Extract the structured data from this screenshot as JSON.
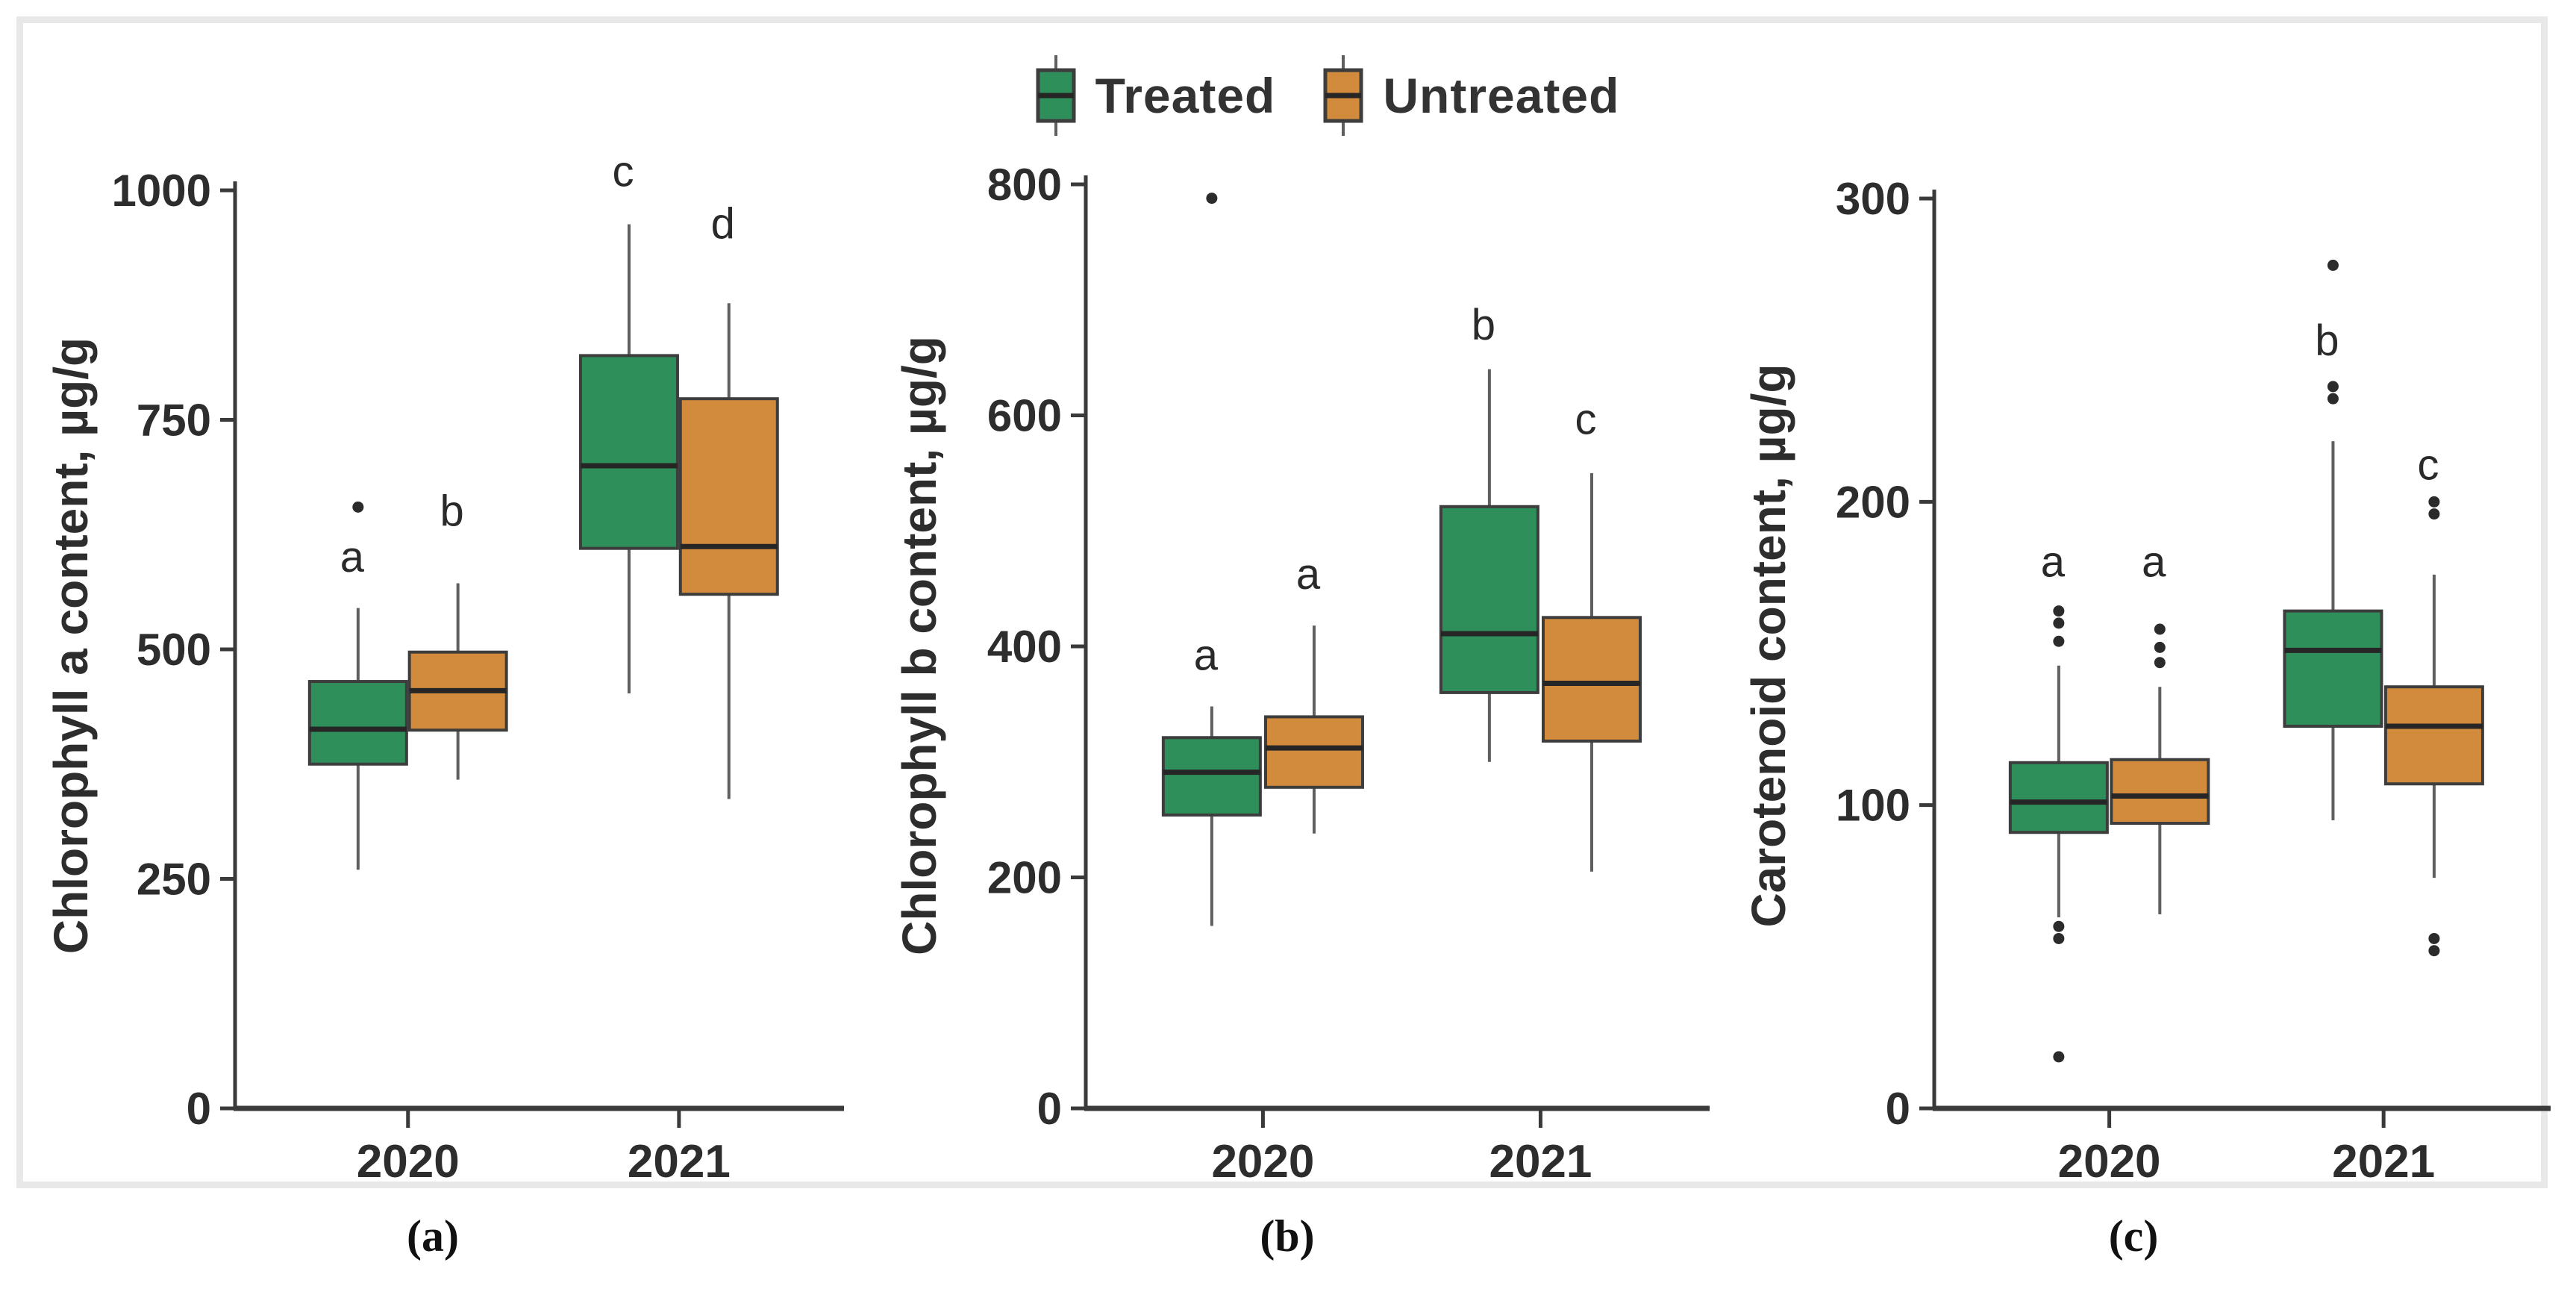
{
  "figure": {
    "background": "#ffffff",
    "frame_color": "#e8e8e8"
  },
  "legend": {
    "items": [
      {
        "label": "Treated",
        "color": "#2f8f5a"
      },
      {
        "label": "Untreated",
        "color": "#d28a3d"
      }
    ]
  },
  "captions": [
    "(a)",
    "(b)",
    "(c)"
  ],
  "colors": {
    "treated": "#2f8f5a",
    "untreated": "#d28a3d",
    "box_border": "#3d3d3d",
    "median": "#262626",
    "whisker": "#5f5f5f",
    "axis": "#3a3a3a",
    "text": "#2d2d2d",
    "outlier": "#2b2b2b"
  },
  "chart_data": [
    {
      "type": "boxplot",
      "panel": "a",
      "ylabel": "Chlorophyll a content, µg/g",
      "ylim": [
        0,
        1000
      ],
      "yticks": [
        0,
        250,
        500,
        750,
        1000
      ],
      "categories": [
        "2020",
        "2021"
      ],
      "series": [
        {
          "name": "Treated",
          "category": "2020",
          "whisker_low": 260,
          "q1": 375,
          "median": 413,
          "q3": 465,
          "whisker_high": 545,
          "outliers_high": [
            655
          ],
          "outliers_low": [],
          "letter": "a",
          "letter_y": 600
        },
        {
          "name": "Untreated",
          "category": "2020",
          "whisker_low": 358,
          "q1": 412,
          "median": 455,
          "q3": 497,
          "whisker_high": 572,
          "outliers_high": [],
          "outliers_low": [],
          "letter": "b",
          "letter_y": 650
        },
        {
          "name": "Treated",
          "category": "2021",
          "whisker_low": 452,
          "q1": 610,
          "median": 700,
          "q3": 820,
          "whisker_high": 963,
          "outliers_high": [],
          "outliers_low": [],
          "letter": "c",
          "letter_y": 1020
        },
        {
          "name": "Untreated",
          "category": "2021",
          "whisker_low": 337,
          "q1": 560,
          "median": 612,
          "q3": 773,
          "whisker_high": 877,
          "outliers_high": [],
          "outliers_low": [],
          "letter": "d",
          "letter_y": 963
        }
      ]
    },
    {
      "type": "boxplot",
      "panel": "b",
      "ylabel": "Chlorophyll b content, µg/g",
      "ylim": [
        0,
        800
      ],
      "yticks": [
        0,
        200,
        400,
        600,
        800
      ],
      "categories": [
        "2020",
        "2021"
      ],
      "series": [
        {
          "name": "Treated",
          "category": "2020",
          "whisker_low": 158,
          "q1": 254,
          "median": 291,
          "q3": 321,
          "whisker_high": 348,
          "outliers_high": [
            788
          ],
          "outliers_low": [],
          "letter": "a",
          "letter_y": 392
        },
        {
          "name": "Untreated",
          "category": "2020",
          "whisker_low": 238,
          "q1": 278,
          "median": 312,
          "q3": 339,
          "whisker_high": 418,
          "outliers_high": [],
          "outliers_low": [],
          "letter": "a",
          "letter_y": 462
        },
        {
          "name": "Treated",
          "category": "2021",
          "whisker_low": 300,
          "q1": 360,
          "median": 411,
          "q3": 521,
          "whisker_high": 640,
          "outliers_high": [],
          "outliers_low": [],
          "letter": "b",
          "letter_y": 678
        },
        {
          "name": "Untreated",
          "category": "2021",
          "whisker_low": 205,
          "q1": 318,
          "median": 368,
          "q3": 425,
          "whisker_high": 550,
          "outliers_high": [],
          "outliers_low": [],
          "letter": "c",
          "letter_y": 596
        }
      ]
    },
    {
      "type": "boxplot",
      "panel": "c",
      "ylabel": "Carotenoid content, µg/g",
      "ylim": [
        0,
        300
      ],
      "yticks": [
        0,
        100,
        200,
        300
      ],
      "categories": [
        "2020",
        "2021"
      ],
      "series": [
        {
          "name": "Treated",
          "category": "2020",
          "whisker_low": 63,
          "q1": 91,
          "median": 101,
          "q3": 114,
          "whisker_high": 146,
          "outliers_high": [
            164,
            160,
            154
          ],
          "outliers_low": [
            60,
            56,
            17
          ],
          "letter": "a",
          "letter_y": 180
        },
        {
          "name": "Untreated",
          "category": "2020",
          "whisker_low": 64,
          "q1": 94,
          "median": 103,
          "q3": 115,
          "whisker_high": 139,
          "outliers_high": [
            158,
            152,
            147
          ],
          "outliers_low": [],
          "letter": "a",
          "letter_y": 180
        },
        {
          "name": "Treated",
          "category": "2021",
          "whisker_low": 95,
          "q1": 126,
          "median": 151,
          "q3": 164,
          "whisker_high": 220,
          "outliers_high": [
            278,
            238,
            234
          ],
          "outliers_low": [],
          "letter": "b",
          "letter_y": 253
        },
        {
          "name": "Untreated",
          "category": "2021",
          "whisker_low": 76,
          "q1": 107,
          "median": 126,
          "q3": 139,
          "whisker_high": 176,
          "outliers_high": [
            200,
            196
          ],
          "outliers_low": [
            56,
            52
          ],
          "letter": "c",
          "letter_y": 212
        }
      ]
    }
  ]
}
